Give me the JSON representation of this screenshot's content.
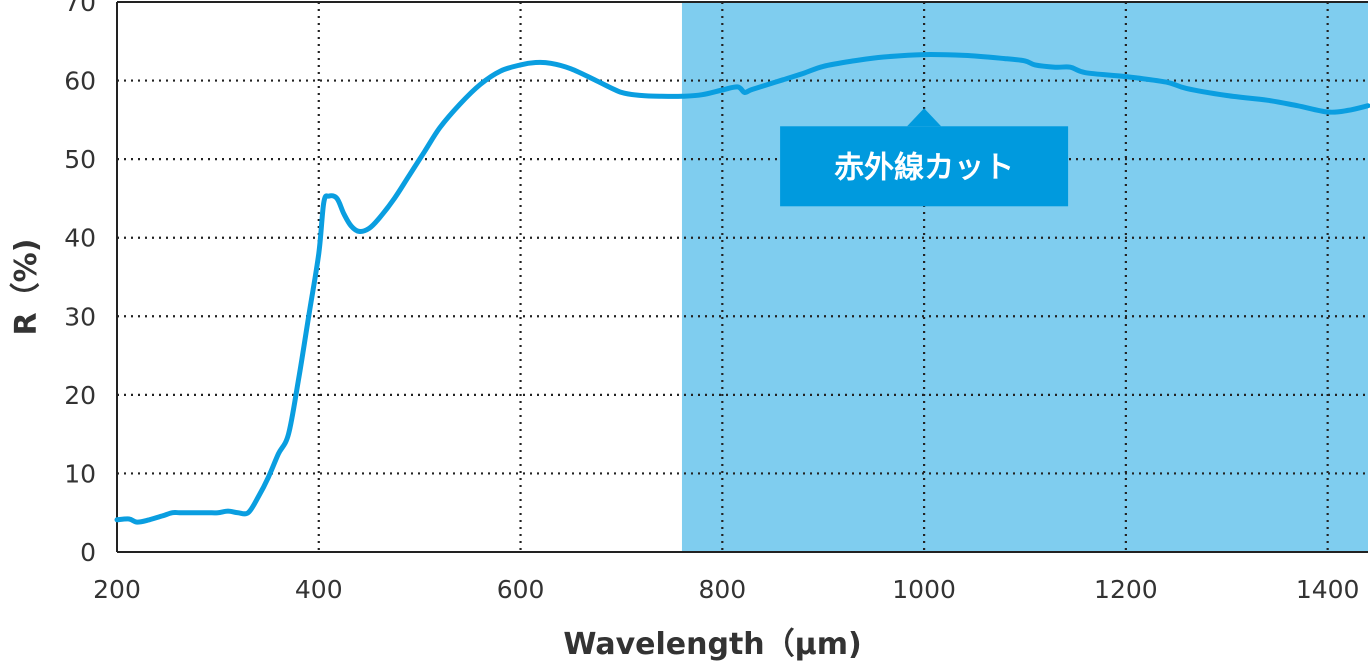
{
  "chart_data": {
    "type": "line",
    "title": "",
    "xlabel": "Wavelength（μm)",
    "ylabel": "R（%)",
    "xlim": [
      200,
      1440
    ],
    "ylim": [
      0,
      70
    ],
    "xticks": [
      200,
      400,
      600,
      800,
      1000,
      1200,
      1400
    ],
    "yticks": [
      0,
      10,
      20,
      30,
      40,
      50,
      60,
      70
    ],
    "grid": "dotted",
    "legend": "none",
    "highlight_region": {
      "x_start": 760,
      "x_end": 1440,
      "label": "赤外線カット",
      "callout_x": 1000,
      "callout_y": 58,
      "color": "#7fcdef",
      "label_bg": "#009ade"
    },
    "series": [
      {
        "color": "#0a9ee0",
        "x": [
          200,
          212,
          220,
          232,
          245,
          255,
          262,
          275,
          290,
          300,
          310,
          320,
          330,
          340,
          350,
          360,
          370,
          380,
          390,
          400,
          405,
          410,
          418,
          425,
          432,
          440,
          450,
          460,
          475,
          490,
          505,
          520,
          540,
          560,
          580,
          600,
          615,
          630,
          650,
          675,
          700,
          720,
          740,
          760,
          780,
          800,
          815,
          822,
          828,
          840,
          860,
          880,
          900,
          930,
          960,
          1000,
          1040,
          1080,
          1100,
          1110,
          1130,
          1145,
          1160,
          1200,
          1240,
          1260,
          1300,
          1340,
          1370,
          1400,
          1420,
          1440
        ],
        "y": [
          4.1,
          4.2,
          3.8,
          4.1,
          4.6,
          5.0,
          5.0,
          5.0,
          5.0,
          5.0,
          5.2,
          5.0,
          5.0,
          7.0,
          9.5,
          12.5,
          15.0,
          22.0,
          30.0,
          38.0,
          44.5,
          45.3,
          45.0,
          43.0,
          41.5,
          40.8,
          41.2,
          42.5,
          45.0,
          48.0,
          51.0,
          54.0,
          57.0,
          59.5,
          61.2,
          62.0,
          62.3,
          62.2,
          61.5,
          60.0,
          58.5,
          58.1,
          58.0,
          58.0,
          58.2,
          58.8,
          59.2,
          58.5,
          58.8,
          59.3,
          60.1,
          60.9,
          61.8,
          62.5,
          63.0,
          63.3,
          63.2,
          62.8,
          62.5,
          62.0,
          61.7,
          61.7,
          61.0,
          60.5,
          59.8,
          59.0,
          58.1,
          57.5,
          56.8,
          56.0,
          56.2,
          56.8
        ]
      }
    ]
  }
}
